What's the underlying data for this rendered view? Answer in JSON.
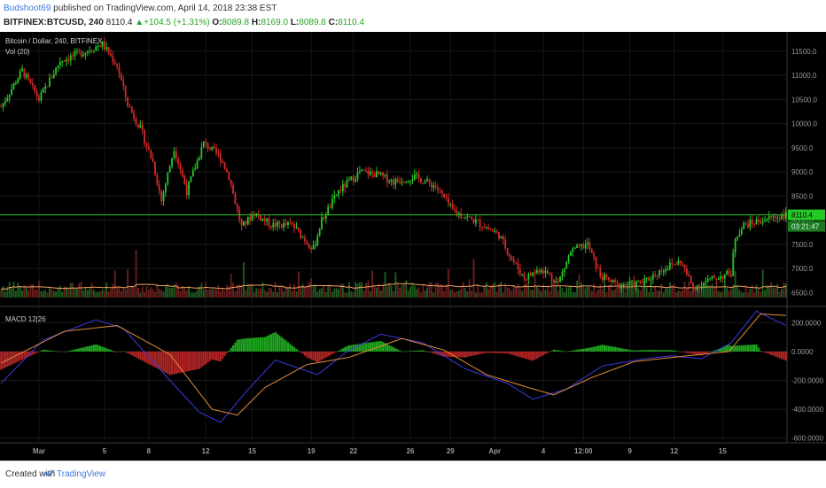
{
  "header": {
    "author": "Budshoot69",
    "published": "published on TradingView.com, April 14, 2018 23:38 EST",
    "symbol": "BITFINEX:BTCUSD, 240",
    "last": "8110.4",
    "change": "▲+104.5 (+1.31%)",
    "o_label": "O:",
    "o_value": "8089.8",
    "h_label": "H:",
    "h_value": "8169.0",
    "l_label": "L:",
    "l_value": "8089.8",
    "c_label": "C:",
    "c_value": "8110.4"
  },
  "panes": {
    "price_title": "Bitcoin / Dollar, 240, BITFINEX",
    "volume_title": "Vol (20)",
    "macd_title": "MACD 12|26",
    "price_marker": "8110.4",
    "timer_marker": "03:21:47"
  },
  "colors": {
    "background": "#000000",
    "up": "#26c826",
    "down": "#d42a2a",
    "price_line": "#26c826",
    "ma_line": "#f0a060",
    "macd_line": "#3a3ae0",
    "signal_line": "#e08a3a"
  },
  "footer": {
    "created": "Created with",
    "brand": "TradingView"
  },
  "chart_data": {
    "type": "candlestick",
    "price_axis": {
      "ticks": [
        "11500.0",
        "11000.0",
        "10500.0",
        "10000.0",
        "9500.0",
        "9000.0",
        "8500.0",
        "8000.0",
        "7500.0",
        "7000.0",
        "6500.0"
      ],
      "range": [
        6250,
        11900
      ]
    },
    "macd_axis": {
      "ticks": [
        "200.0000",
        "0.0000",
        "-200.0000",
        "-400.0000",
        "-600.0000"
      ],
      "range": [
        -620,
        300
      ]
    },
    "x_ticks": [
      "Mar",
      "5",
      "8",
      "12",
      "15",
      "19",
      "22",
      "26",
      "29",
      "Apr",
      "4",
      "12:00",
      "9",
      "12",
      "15"
    ],
    "close_keypoints": [
      [
        0,
        10350
      ],
      [
        10,
        11100
      ],
      [
        18,
        10500
      ],
      [
        28,
        11300
      ],
      [
        40,
        11500
      ],
      [
        48,
        11650
      ],
      [
        55,
        11200
      ],
      [
        60,
        10400
      ],
      [
        66,
        9900
      ],
      [
        72,
        9200
      ],
      [
        76,
        8400
      ],
      [
        82,
        9500
      ],
      [
        88,
        8600
      ],
      [
        96,
        9600
      ],
      [
        104,
        9300
      ],
      [
        108,
        8900
      ],
      [
        114,
        7850
      ],
      [
        120,
        8150
      ],
      [
        128,
        7900
      ],
      [
        138,
        7900
      ],
      [
        148,
        7400
      ],
      [
        152,
        8000
      ],
      [
        160,
        8600
      ],
      [
        170,
        9000
      ],
      [
        178,
        8950
      ],
      [
        186,
        8800
      ],
      [
        196,
        8900
      ],
      [
        206,
        8700
      ],
      [
        214,
        8200
      ],
      [
        226,
        7950
      ],
      [
        236,
        7700
      ],
      [
        242,
        7200
      ],
      [
        248,
        6800
      ],
      [
        256,
        7000
      ],
      [
        264,
        6700
      ],
      [
        270,
        7350
      ],
      [
        278,
        7500
      ],
      [
        284,
        6850
      ],
      [
        292,
        6650
      ],
      [
        304,
        6700
      ],
      [
        314,
        7000
      ],
      [
        322,
        7150
      ],
      [
        328,
        6600
      ],
      [
        338,
        6800
      ],
      [
        346,
        6900
      ],
      [
        348,
        7650
      ],
      [
        352,
        7900
      ],
      [
        366,
        8060
      ],
      [
        372,
        8110
      ]
    ],
    "macd_keypoints": [
      [
        0,
        -220
      ],
      [
        20,
        80
      ],
      [
        45,
        220
      ],
      [
        58,
        160
      ],
      [
        80,
        -200
      ],
      [
        94,
        -420
      ],
      [
        104,
        -490
      ],
      [
        116,
        -280
      ],
      [
        130,
        -60
      ],
      [
        150,
        -160
      ],
      [
        164,
        0
      ],
      [
        180,
        120
      ],
      [
        200,
        60
      ],
      [
        220,
        -120
      ],
      [
        240,
        -220
      ],
      [
        252,
        -330
      ],
      [
        268,
        -260
      ],
      [
        285,
        -100
      ],
      [
        305,
        -50
      ],
      [
        318,
        -30
      ],
      [
        332,
        -50
      ],
      [
        346,
        60
      ],
      [
        358,
        280
      ],
      [
        372,
        180
      ]
    ],
    "signal_keypoints": [
      [
        0,
        -80
      ],
      [
        30,
        140
      ],
      [
        55,
        180
      ],
      [
        80,
        -20
      ],
      [
        100,
        -400
      ],
      [
        112,
        -440
      ],
      [
        125,
        -250
      ],
      [
        145,
        -90
      ],
      [
        165,
        -40
      ],
      [
        190,
        90
      ],
      [
        210,
        10
      ],
      [
        230,
        -160
      ],
      [
        250,
        -250
      ],
      [
        262,
        -300
      ],
      [
        280,
        -180
      ],
      [
        300,
        -70
      ],
      [
        325,
        -30
      ],
      [
        345,
        0
      ],
      [
        360,
        260
      ],
      [
        372,
        250
      ]
    ],
    "candle_count": 373
  }
}
